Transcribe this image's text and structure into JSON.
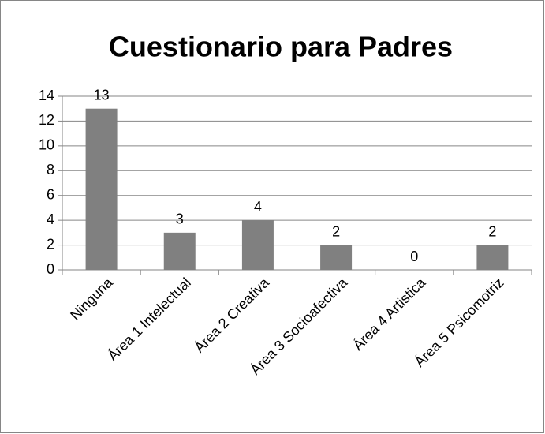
{
  "chart_data": {
    "type": "bar",
    "title": "Cuestionario para Padres",
    "categories": [
      "Ninguna",
      "Área 1 Intelectual",
      "Área 2 Creativa",
      "Área 3 Socioafectiva",
      "Área 4 Artistica",
      "Área 5 Psicomotriz"
    ],
    "values": [
      13,
      3,
      4,
      2,
      0,
      2
    ],
    "color": "#808080",
    "ylim": [
      0,
      14
    ],
    "yticks": [
      0,
      2,
      4,
      6,
      8,
      10,
      12,
      14
    ],
    "grid": true,
    "data_labels": true
  }
}
